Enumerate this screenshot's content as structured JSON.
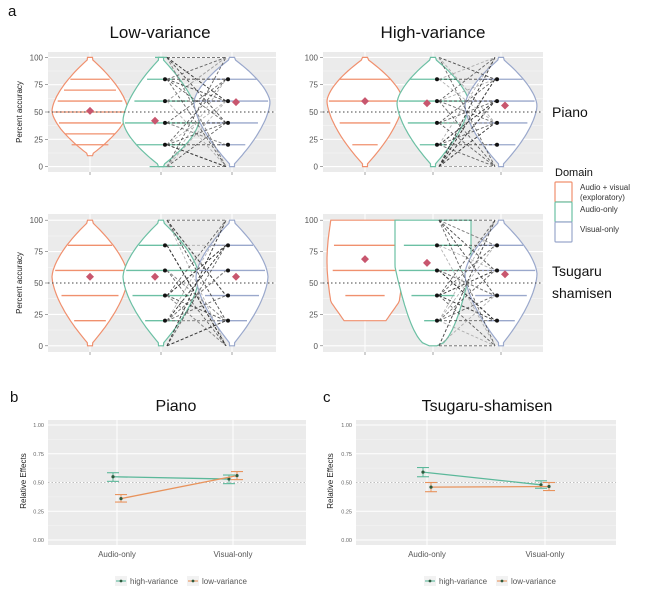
{
  "chart_data": [
    {
      "type": "violin",
      "panel": "a",
      "panel_label": "a",
      "ylabel": "Percent accuracy",
      "ylim": [
        0,
        100
      ],
      "yticks": [
        0,
        25,
        50,
        75,
        100
      ],
      "reference_line": 50,
      "col_facets": [
        "Low-variance",
        "High-variance"
      ],
      "row_facets": [
        "Piano",
        "Tsugaru\nshamisen"
      ],
      "row_facet_lines": [
        [
          "Piano"
        ],
        [
          "Tsugaru",
          "shamisen"
        ]
      ],
      "legend": {
        "title": "Domain",
        "position": "right",
        "entries": [
          {
            "label_lines": [
              "Audio + visual",
              "(exploratory)"
            ],
            "color": "#F0906E"
          },
          {
            "label_lines": [
              "Audio-only"
            ],
            "color": "#6CC0A4"
          },
          {
            "label_lines": [
              "Visual-only"
            ],
            "color": "#9AA8CC"
          }
        ]
      },
      "facets": [
        {
          "col": "Low-variance",
          "row": "Piano",
          "groups": [
            {
              "domain": "Audio + visual (exploratory)",
              "range": [
                10,
                100
              ],
              "mean": 51,
              "levels": [
                20,
                30,
                40,
                50,
                60,
                70,
                80
              ]
            },
            {
              "domain": "Audio-only",
              "range": [
                0,
                100
              ],
              "mean": 42,
              "levels": [
                0,
                20,
                40,
                60,
                80,
                100
              ]
            },
            {
              "domain": "Visual-only",
              "range": [
                0,
                100
              ],
              "mean": 59,
              "levels": [
                20,
                40,
                60,
                80
              ]
            }
          ]
        },
        {
          "col": "High-variance",
          "row": "Piano",
          "groups": [
            {
              "domain": "Audio + visual (exploratory)",
              "range": [
                0,
                100
              ],
              "mean": 60,
              "levels": [
                20,
                40,
                60,
                80
              ]
            },
            {
              "domain": "Audio-only",
              "range": [
                0,
                100
              ],
              "mean": 58,
              "levels": [
                20,
                40,
                60,
                80
              ]
            },
            {
              "domain": "Visual-only",
              "range": [
                0,
                100
              ],
              "mean": 56,
              "levels": [
                20,
                40,
                60,
                80
              ]
            }
          ]
        },
        {
          "col": "Low-variance",
          "row": "Tsugaru shamisen",
          "groups": [
            {
              "domain": "Audio + visual (exploratory)",
              "range": [
                0,
                100
              ],
              "mean": 55,
              "levels": [
                20,
                40,
                60,
                80
              ]
            },
            {
              "domain": "Audio-only",
              "range": [
                0,
                100
              ],
              "mean": 55,
              "levels": [
                20,
                40,
                60,
                80
              ]
            },
            {
              "domain": "Visual-only",
              "range": [
                0,
                100
              ],
              "mean": 55,
              "levels": [
                20,
                40,
                60,
                80
              ]
            }
          ]
        },
        {
          "col": "High-variance",
          "row": "Tsugaru shamisen",
          "groups": [
            {
              "domain": "Audio + visual (exploratory)",
              "range": [
                20,
                100
              ],
              "mean": 69,
              "levels": [
                40,
                60,
                80
              ]
            },
            {
              "domain": "Audio-only",
              "range": [
                0,
                100
              ],
              "mean": 66,
              "levels": [
                20,
                40,
                60,
                80
              ]
            },
            {
              "domain": "Visual-only",
              "range": [
                0,
                100
              ],
              "mean": 57,
              "levels": [
                20,
                40,
                60,
                80
              ]
            }
          ]
        }
      ]
    },
    {
      "type": "line",
      "panel": "b",
      "panel_label": "b",
      "title": "Piano",
      "ylabel": "Relative Effects",
      "ylim": [
        0,
        1
      ],
      "yticks": [
        "0.00",
        "0.25",
        "0.50",
        "0.75",
        "1.00"
      ],
      "categories": [
        "Audio-only",
        "Visual-only"
      ],
      "reference_line": 0.5,
      "legend_position": "bottom",
      "series": [
        {
          "name": "high-variance",
          "color": "#5BB89A",
          "values": [
            0.55,
            0.53
          ],
          "ci_low": [
            0.51,
            0.49
          ],
          "ci_high": [
            0.585,
            0.565
          ]
        },
        {
          "name": "low-variance",
          "color": "#E8935C",
          "values": [
            0.36,
            0.56
          ],
          "ci_low": [
            0.33,
            0.525
          ],
          "ci_high": [
            0.395,
            0.595
          ]
        }
      ]
    },
    {
      "type": "line",
      "panel": "c",
      "panel_label": "c",
      "title": "Tsugaru-shamisen",
      "ylabel": "Relative Effects",
      "ylim": [
        0,
        1
      ],
      "yticks": [
        "0.00",
        "0.25",
        "0.50",
        "0.75",
        "1.00"
      ],
      "categories": [
        "Audio-only",
        "Visual-only"
      ],
      "reference_line": 0.5,
      "legend_position": "bottom",
      "series": [
        {
          "name": "high-variance",
          "color": "#5BB89A",
          "values": [
            0.59,
            0.48
          ],
          "ci_low": [
            0.55,
            0.45
          ],
          "ci_high": [
            0.63,
            0.515
          ]
        },
        {
          "name": "low-variance",
          "color": "#E8935C",
          "values": [
            0.46,
            0.465
          ],
          "ci_low": [
            0.42,
            0.43
          ],
          "ci_high": [
            0.5,
            0.5
          ]
        }
      ]
    }
  ],
  "colors": {
    "panel_bg": "#EBEBEB",
    "grid": "#FFFFFF",
    "mean_marker": "#C8566E",
    "pair_line": "#333333"
  }
}
